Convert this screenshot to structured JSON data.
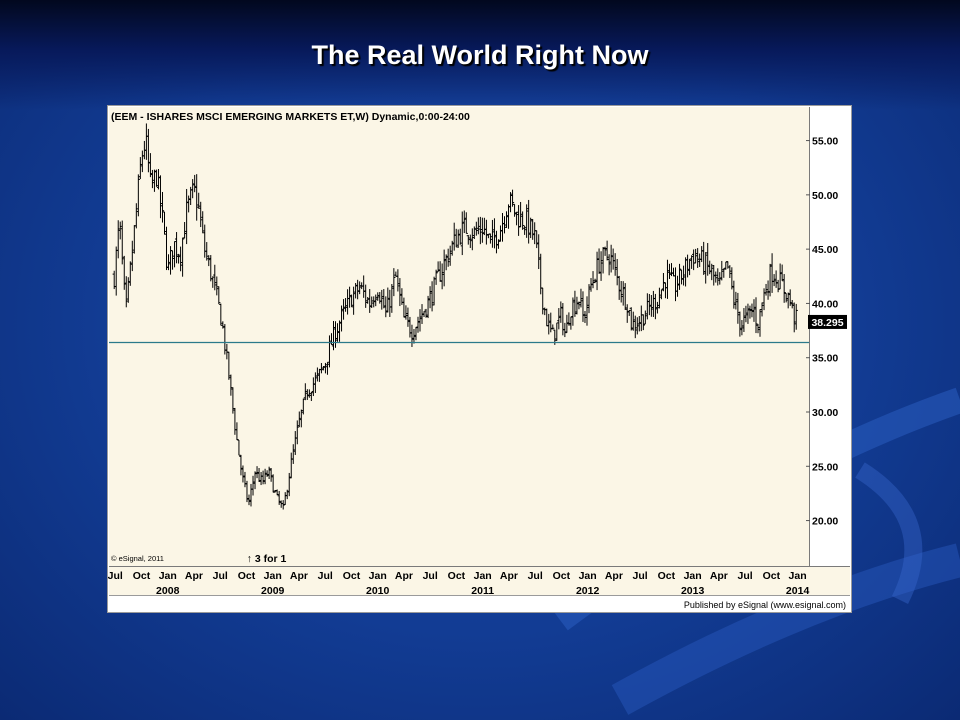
{
  "slide": {
    "title": "The Real World Right Now"
  },
  "chart_data": {
    "type": "ohlc",
    "title": "(EEM - ISHARES MSCI EMERGING MARKETS ET,W) Dynamic,0:00-24:00",
    "ylim": [
      16,
      58
    ],
    "yticks": [
      "55.00",
      "50.00",
      "45.00",
      "40.00",
      "35.00",
      "30.00",
      "25.00",
      "20.00"
    ],
    "last_price": "38.295",
    "horizontal_line": 36.4,
    "copyright": "© eSignal, 2011",
    "split_annotation": "3 for 1",
    "split_date": "2008.79",
    "published_by": "Published by eSignal (www.esignal.com)",
    "colors": {
      "plot_bg": "#fbf6e6",
      "bars": "#000000",
      "support_line": "#2b7a8a",
      "price_box": "#000000"
    },
    "month_labels": [
      {
        "t": 2007.5,
        "label": "Jul"
      },
      {
        "t": 2007.75,
        "label": "Oct"
      },
      {
        "t": 2008.0,
        "label": "Jan"
      },
      {
        "t": 2008.25,
        "label": "Apr"
      },
      {
        "t": 2008.5,
        "label": "Jul"
      },
      {
        "t": 2008.75,
        "label": "Oct"
      },
      {
        "t": 2009.0,
        "label": "Jan"
      },
      {
        "t": 2009.25,
        "label": "Apr"
      },
      {
        "t": 2009.5,
        "label": "Jul"
      },
      {
        "t": 2009.75,
        "label": "Oct"
      },
      {
        "t": 2010.0,
        "label": "Jan"
      },
      {
        "t": 2010.25,
        "label": "Apr"
      },
      {
        "t": 2010.5,
        "label": "Jul"
      },
      {
        "t": 2010.75,
        "label": "Oct"
      },
      {
        "t": 2011.0,
        "label": "Jan"
      },
      {
        "t": 2011.25,
        "label": "Apr"
      },
      {
        "t": 2011.5,
        "label": "Jul"
      },
      {
        "t": 2011.75,
        "label": "Oct"
      },
      {
        "t": 2012.0,
        "label": "Jan"
      },
      {
        "t": 2012.25,
        "label": "Apr"
      },
      {
        "t": 2012.5,
        "label": "Jul"
      },
      {
        "t": 2012.75,
        "label": "Oct"
      },
      {
        "t": 2013.0,
        "label": "Jan"
      },
      {
        "t": 2013.25,
        "label": "Apr"
      },
      {
        "t": 2013.5,
        "label": "Jul"
      },
      {
        "t": 2013.75,
        "label": "Oct"
      },
      {
        "t": 2014.0,
        "label": "Jan"
      }
    ],
    "year_labels": [
      {
        "t": 2008.0,
        "label": "2008"
      },
      {
        "t": 2009.0,
        "label": "2009"
      },
      {
        "t": 2010.0,
        "label": "2010"
      },
      {
        "t": 2011.0,
        "label": "2011"
      },
      {
        "t": 2012.0,
        "label": "2012"
      },
      {
        "t": 2013.0,
        "label": "2013"
      },
      {
        "t": 2014.0,
        "label": "2014"
      }
    ],
    "anchors": [
      [
        "2007.49",
        42.5
      ],
      [
        "2007.54",
        47.5
      ],
      [
        "2007.6",
        39.0
      ],
      [
        "2007.68",
        46.5
      ],
      [
        "2007.75",
        53.5
      ],
      [
        "2007.79",
        55.0
      ],
      [
        "2007.84",
        50.5
      ],
      [
        "2007.89",
        52.0
      ],
      [
        "2007.96",
        47.0
      ],
      [
        "2008.0",
        43.0
      ],
      [
        "2008.06",
        45.5
      ],
      [
        "2008.12",
        44.5
      ],
      [
        "2008.18",
        48.5
      ],
      [
        "2008.25",
        50.5
      ],
      [
        "2008.29",
        49.0
      ],
      [
        "2008.35",
        45.0
      ],
      [
        "2008.42",
        42.5
      ],
      [
        "2008.48",
        40.0
      ],
      [
        "2008.52",
        38.0
      ],
      [
        "2008.58",
        33.5
      ],
      [
        "2008.65",
        28.0
      ],
      [
        "2008.71",
        24.0
      ],
      [
        "2008.77",
        21.5
      ],
      [
        "2008.83",
        24.5
      ],
      [
        "2008.9",
        23.5
      ],
      [
        "2008.96",
        24.5
      ],
      [
        "2009.04",
        22.0
      ],
      [
        "2009.1",
        21.0
      ],
      [
        "2009.17",
        25.0
      ],
      [
        "2009.25",
        29.0
      ],
      [
        "2009.33",
        32.0
      ],
      [
        "2009.42",
        33.0
      ],
      [
        "2009.5",
        34.5
      ],
      [
        "2009.58",
        37.0
      ],
      [
        "2009.67",
        39.0
      ],
      [
        "2009.75",
        40.5
      ],
      [
        "2009.83",
        41.5
      ],
      [
        "2009.92",
        40.0
      ],
      [
        "2010.0",
        41.5
      ],
      [
        "2010.08",
        39.0
      ],
      [
        "2010.17",
        42.5
      ],
      [
        "2010.25",
        38.5
      ],
      [
        "2010.33",
        37.5
      ],
      [
        "2010.42",
        39.0
      ],
      [
        "2010.5",
        40.5
      ],
      [
        "2010.58",
        42.5
      ],
      [
        "2010.67",
        44.5
      ],
      [
        "2010.75",
        46.0
      ],
      [
        "2010.83",
        47.0
      ],
      [
        "2010.92",
        46.5
      ],
      [
        "2011.0",
        47.0
      ],
      [
        "2011.08",
        45.5
      ],
      [
        "2011.17",
        47.0
      ],
      [
        "2011.25",
        49.5
      ],
      [
        "2011.33",
        48.0
      ],
      [
        "2011.42",
        47.5
      ],
      [
        "2011.5",
        46.0
      ],
      [
        "2011.56",
        41.0
      ],
      [
        "2011.62",
        38.0
      ],
      [
        "2011.67",
        37.0
      ],
      [
        "2011.75",
        39.0
      ],
      [
        "2011.79",
        37.0
      ],
      [
        "2011.83",
        39.5
      ],
      [
        "2011.92",
        40.5
      ],
      [
        "2011.96",
        38.5
      ],
      [
        "2012.04",
        42.0
      ],
      [
        "2012.12",
        44.0
      ],
      [
        "2012.21",
        44.5
      ],
      [
        "2012.29",
        42.0
      ],
      [
        "2012.38",
        40.0
      ],
      [
        "2012.42",
        38.0
      ],
      [
        "2012.5",
        38.5
      ],
      [
        "2012.58",
        39.5
      ],
      [
        "2012.67",
        40.5
      ],
      [
        "2012.75",
        42.5
      ],
      [
        "2012.83",
        41.5
      ],
      [
        "2012.92",
        43.0
      ],
      [
        "2013.0",
        44.5
      ],
      [
        "2013.08",
        44.0
      ],
      [
        "2013.17",
        43.0
      ],
      [
        "2013.25",
        41.5
      ],
      [
        "2013.33",
        43.5
      ],
      [
        "2013.4",
        40.0
      ],
      [
        "2013.46",
        38.0
      ],
      [
        "2013.5",
        38.5
      ],
      [
        "2013.58",
        39.5
      ],
      [
        "2013.62",
        38.0
      ],
      [
        "2013.67",
        40.5
      ],
      [
        "2013.75",
        43.0
      ],
      [
        "2013.83",
        42.0
      ],
      [
        "2013.92",
        40.5
      ],
      [
        "2013.96",
        39.0
      ],
      [
        "2014.0",
        38.3
      ]
    ]
  }
}
